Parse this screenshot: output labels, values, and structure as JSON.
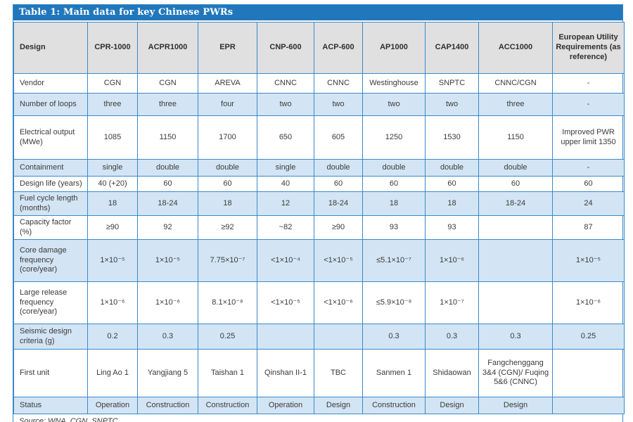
{
  "title": "Table 1: Main data for key Chinese PWRs",
  "source_note": "Source: WNA, CGN, SNPTC",
  "colors": {
    "title_bar_bg": "#2177bb",
    "title_text": "#ffffff",
    "header_bg": "#e0e0e0",
    "alt_row_bg": "#d3e5f4",
    "border": "#3a89c9",
    "text": "#3a3a3a"
  },
  "columns": [
    "Design",
    "CPR-1000",
    "ACPR1000",
    "EPR",
    "CNP-600",
    "ACP-600",
    "AP1000",
    "CAP1400",
    "ACC1000",
    "European Utility Requirements (as reference)"
  ],
  "rows": [
    {
      "label": "Vendor",
      "cells": [
        "CGN",
        "CGN",
        "AREVA",
        "CNNC",
        "CNNC",
        "Westinghouse",
        "SNPTC",
        "CNNC/CGN",
        "-"
      ]
    },
    {
      "label": "Number of loops",
      "cells": [
        "three",
        "three",
        "four",
        "two",
        "two",
        "two",
        "two",
        "three",
        "-"
      ]
    },
    {
      "label": "Electrical output (MWe)",
      "cells": [
        "1085",
        "1150",
        "1700",
        "650",
        "605",
        "1250",
        "1530",
        "1150",
        "Improved PWR upper limit 1350"
      ]
    },
    {
      "label": "Containment",
      "cells": [
        "single",
        "double",
        "double",
        "single",
        "double",
        "double",
        "double",
        "double",
        "-"
      ]
    },
    {
      "label": "Design life (years)",
      "cells": [
        "40 (+20)",
        "60",
        "60",
        "40",
        "60",
        "60",
        "60",
        "60",
        "60"
      ]
    },
    {
      "label": "Fuel cycle length (months)",
      "cells": [
        "18",
        "18-24",
        "18",
        "12",
        "18-24",
        "18",
        "18",
        "18-24",
        "24"
      ]
    },
    {
      "label": "Capacity factor (%)",
      "cells": [
        "≥90",
        "92",
        "≥92",
        "~82",
        "≥90",
        "93",
        "93",
        "",
        "87"
      ]
    },
    {
      "label": "Core damage frequency (core/year)",
      "cells": [
        "1×10⁻⁵",
        "1×10⁻⁵",
        "7.75×10⁻⁷",
        "<1×10⁻⁴",
        "<1×10⁻⁵",
        "≤5.1×10⁻⁷",
        "1×10⁻⁶",
        "",
        "1×10⁻⁵"
      ]
    },
    {
      "label": "Large release frequency (core/year)",
      "cells": [
        "1×10⁻⁶",
        "1×10⁻⁶",
        "8.1×10⁻⁸",
        "<1×10⁻⁵",
        "<1×10⁻⁶",
        "≤5.9×10⁻⁸",
        "1×10⁻⁷",
        "",
        "1×10⁻⁶"
      ]
    },
    {
      "label": "Seismic design criteria (g)",
      "cells": [
        "0.2",
        "0.3",
        "0.25",
        "",
        "",
        "0.3",
        "0.3",
        "0.3",
        "0.25"
      ]
    },
    {
      "label": "First unit",
      "cells": [
        "Ling Ao 1",
        "Yangjiang 5",
        "Taishan 1",
        "Qinshan II-1",
        "TBC",
        "Sanmen 1",
        "Shidaowan",
        "Fangchenggang 3&4 (CGN)/ Fuqing 5&6 (CNNC)",
        ""
      ]
    },
    {
      "label": "Status",
      "cells": [
        "Operation",
        "Construction",
        "Construction",
        "Operation",
        "Design",
        "Construction",
        "Design",
        "Design",
        ""
      ]
    }
  ]
}
